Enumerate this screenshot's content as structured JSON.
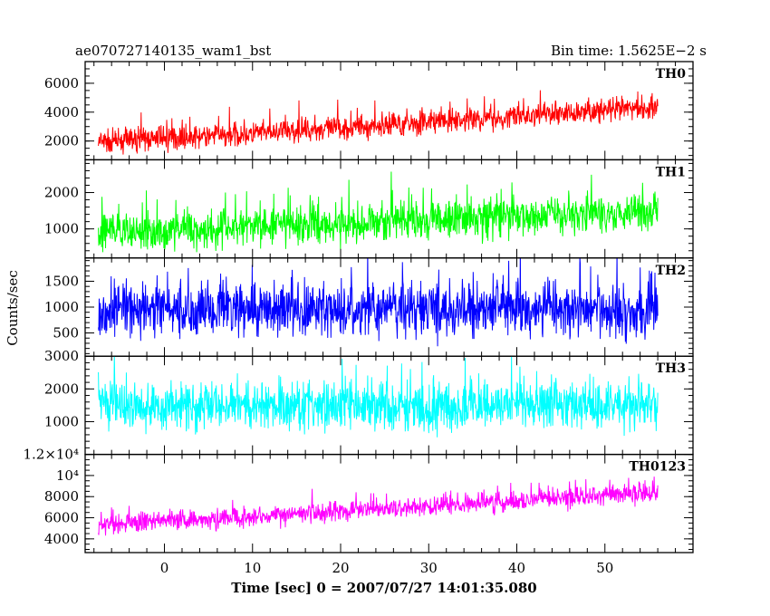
{
  "chart_data": {
    "type": "line",
    "title_left": "ae070727140135_wam1_bst",
    "title_right": "Bin time: 1.5625E−2 s",
    "xlabel": "Time [sec] 0 = 2007/07/27 14:01:35.080",
    "ylabel": "Counts/sec",
    "xlim": [
      -9,
      60
    ],
    "x_ticks": [
      0,
      10,
      20,
      30,
      40,
      50
    ],
    "x_tick_labels": [
      "0",
      "10",
      "20",
      "30",
      "40",
      "50"
    ],
    "data_x_range": [
      -7.5,
      56
    ],
    "bin_time_s": 0.015625,
    "series": [
      {
        "name": "TH0",
        "color": "#ff0000",
        "ylim": [
          700,
          7500
        ],
        "y_ticks": [
          2000,
          4000,
          6000
        ],
        "y_tick_labels": [
          "2000",
          "4000",
          "6000"
        ],
        "trend": [
          [
            -7.5,
            1900
          ],
          [
            0,
            2200
          ],
          [
            10,
            2500
          ],
          [
            20,
            2900
          ],
          [
            30,
            3300
          ],
          [
            40,
            3700
          ],
          [
            50,
            4100
          ],
          [
            56,
            4400
          ]
        ],
        "spread": 700
      },
      {
        "name": "TH1",
        "color": "#00ff00",
        "ylim": [
          200,
          2900
        ],
        "y_ticks": [
          1000,
          2000
        ],
        "y_tick_labels": [
          "1000",
          "2000"
        ],
        "trend": [
          [
            -7.5,
            900
          ],
          [
            0,
            950
          ],
          [
            10,
            1050
          ],
          [
            20,
            1150
          ],
          [
            30,
            1250
          ],
          [
            40,
            1350
          ],
          [
            50,
            1450
          ],
          [
            56,
            1500
          ]
        ],
        "spread": 450
      },
      {
        "name": "TH2",
        "color": "#0000ff",
        "ylim": [
          50,
          1950
        ],
        "y_ticks": [
          500,
          1000,
          1500
        ],
        "y_tick_labels": [
          "500",
          "1000",
          "1500"
        ],
        "trend": [
          [
            -7.5,
            950
          ],
          [
            0,
            950
          ],
          [
            20,
            950
          ],
          [
            40,
            950
          ],
          [
            56,
            950
          ]
        ],
        "spread": 450
      },
      {
        "name": "TH3",
        "color": "#00ffff",
        "ylim": [
          0,
          3000
        ],
        "y_ticks": [
          1000,
          2000,
          3000
        ],
        "y_tick_labels": [
          "1000",
          "2000",
          "3000"
        ],
        "trend": [
          [
            -7.5,
            1500
          ],
          [
            0,
            1500
          ],
          [
            20,
            1500
          ],
          [
            40,
            1500
          ],
          [
            56,
            1500
          ]
        ],
        "spread": 650
      },
      {
        "name": "TH0123",
        "color": "#ff00ff",
        "ylim": [
          2700,
          12000
        ],
        "y_ticks": [
          4000,
          6000,
          8000,
          10000,
          12000
        ],
        "y_tick_labels": [
          "4000",
          "6000",
          "8000",
          "10⁴",
          "1.2×10⁴"
        ],
        "trend": [
          [
            -7.5,
            5300
          ],
          [
            0,
            5700
          ],
          [
            10,
            6100
          ],
          [
            20,
            6600
          ],
          [
            30,
            7100
          ],
          [
            40,
            7600
          ],
          [
            50,
            8100
          ],
          [
            56,
            8400
          ]
        ],
        "spread": 800
      }
    ]
  }
}
